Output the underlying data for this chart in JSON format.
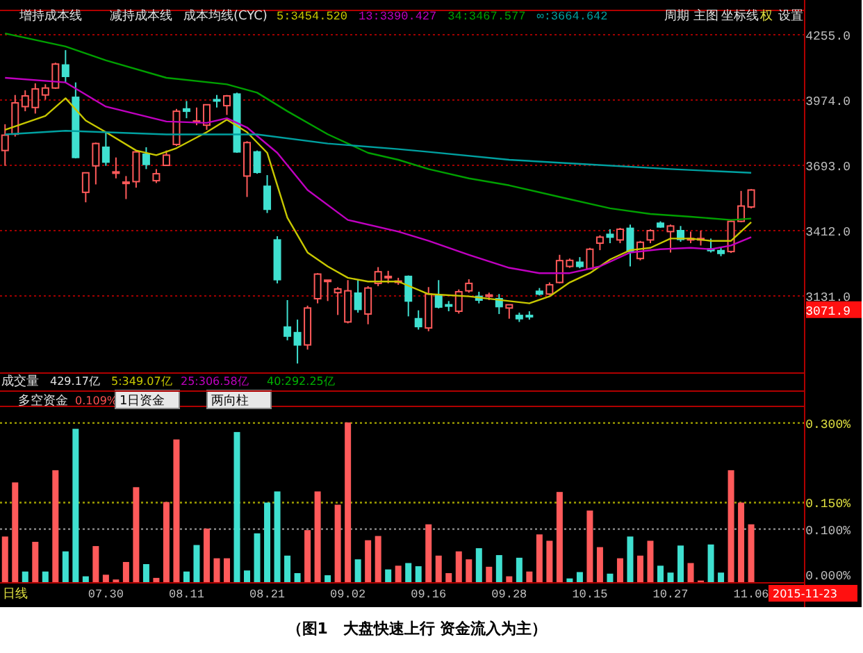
{
  "chart_data": [
    {
      "type": "candlestick",
      "grid": "y",
      "legend": "top",
      "categories": [
        null,
        null,
        null,
        null,
        null,
        null,
        null,
        null,
        null,
        null,
        null,
        null,
        null,
        null,
        null,
        null,
        null,
        null,
        null,
        null,
        null,
        null,
        null,
        null,
        null,
        null,
        null,
        null,
        null,
        null,
        null,
        null,
        null,
        null,
        null,
        null,
        null,
        null,
        null,
        null,
        null,
        null,
        null,
        null,
        null,
        null,
        null,
        null,
        null,
        null,
        null,
        null,
        null,
        null,
        null,
        null,
        null,
        null,
        null,
        null,
        null,
        null,
        null,
        null,
        null,
        null,
        null,
        null,
        null,
        null,
        null,
        null,
        null,
        null,
        null
      ],
      "ohlc": [
        [
          3757,
          3870,
          3691,
          3823
        ],
        [
          3827,
          3996,
          3817,
          3962
        ],
        [
          3946,
          4016,
          3926,
          3992
        ],
        [
          3942,
          4046,
          3916,
          4022
        ],
        [
          3996,
          4042,
          3976,
          4026
        ],
        [
          4026,
          4135,
          4022,
          4129
        ],
        [
          4125,
          4189,
          4050,
          4076
        ],
        [
          3986,
          4050,
          3723,
          3727
        ],
        [
          3577,
          3661,
          3534,
          3661
        ],
        [
          3691,
          3791,
          3611,
          3787
        ],
        [
          3771,
          3837,
          3691,
          3707
        ],
        [
          3661,
          3727,
          3637,
          3665
        ],
        [
          3617,
          3647,
          3548,
          3621
        ],
        [
          3623,
          3757,
          3597,
          3751
        ],
        [
          3741,
          3771,
          3677,
          3697
        ],
        [
          3627,
          3677,
          3617,
          3657
        ],
        [
          3693,
          3757,
          3691,
          3737
        ],
        [
          3783,
          3936,
          3777,
          3926
        ],
        [
          3936,
          3970,
          3896,
          3926
        ],
        [
          3880,
          3942,
          3866,
          3884
        ],
        [
          3866,
          3954,
          3846,
          3954
        ],
        [
          3976,
          3996,
          3942,
          3970
        ],
        [
          3950,
          3996,
          3910,
          3992
        ],
        [
          4000,
          4006,
          3747,
          3751
        ],
        [
          3647,
          3797,
          3557,
          3791
        ],
        [
          3751,
          3757,
          3657,
          3663
        ],
        [
          3603,
          3651,
          3488,
          3504
        ],
        [
          3372,
          3388,
          3185,
          3201
        ],
        [
          2997,
          3113,
          2940,
          2958
        ],
        [
          2973,
          3029,
          2840,
          2920
        ],
        [
          2920,
          3089,
          2900,
          3079
        ],
        [
          3119,
          3229,
          3099,
          3225
        ],
        [
          3195,
          3199,
          3109,
          3199
        ],
        [
          3145,
          3169,
          3049,
          3161
        ],
        [
          3019,
          3199,
          3013,
          3153
        ],
        [
          3143,
          3199,
          3059,
          3073
        ],
        [
          3053,
          3173,
          3009,
          3165
        ],
        [
          3185,
          3255,
          3173,
          3235
        ],
        [
          3211,
          3239,
          3185,
          3215
        ],
        [
          3191,
          3209,
          3179,
          3195
        ],
        [
          3215,
          3219,
          3043,
          3109
        ],
        [
          3033,
          3069,
          2986,
          2999
        ],
        [
          2993,
          3169,
          2979,
          3139
        ],
        [
          3133,
          3199,
          3077,
          3083
        ],
        [
          3093,
          3109,
          3065,
          3089
        ],
        [
          3065,
          3159,
          3055,
          3149
        ],
        [
          3153,
          3203,
          3145,
          3185
        ],
        [
          3129,
          3149,
          3099,
          3113
        ],
        [
          3131,
          3145,
          3113,
          3135
        ],
        [
          3119,
          3139,
          3053,
          3085
        ],
        [
          3079,
          3093,
          3033,
          3093
        ],
        [
          3047,
          3059,
          3019,
          3033
        ],
        [
          3047,
          3065,
          3029,
          3043
        ],
        [
          3151,
          3165,
          3133,
          3139
        ],
        [
          3139,
          3189,
          3135,
          3179
        ],
        [
          3189,
          3308,
          3185,
          3283
        ],
        [
          3258,
          3292,
          3252,
          3284
        ],
        [
          3276,
          3298,
          3250,
          3258
        ],
        [
          3248,
          3338,
          3244,
          3332
        ],
        [
          3358,
          3392,
          3328,
          3384
        ],
        [
          3396,
          3418,
          3358,
          3384
        ],
        [
          3372,
          3424,
          3358,
          3418
        ],
        [
          3422,
          3438,
          3258,
          3322
        ],
        [
          3292,
          3368,
          3284,
          3362
        ],
        [
          3372,
          3418,
          3358,
          3412
        ],
        [
          3444,
          3452,
          3424,
          3428
        ],
        [
          3408,
          3438,
          3318,
          3432
        ],
        [
          3412,
          3432,
          3364,
          3374
        ],
        [
          3376,
          3408,
          3358,
          3378
        ],
        [
          3374,
          3412,
          3348,
          3378
        ],
        [
          3334,
          3378,
          3318,
          3326
        ],
        [
          3326,
          3338,
          3302,
          3314
        ],
        [
          3322,
          3458,
          3316,
          3452
        ],
        [
          3452,
          3583,
          3448,
          3518
        ],
        [
          3514,
          3591,
          3508,
          3587
        ]
      ],
      "colors": [
        "#ff5a5a",
        "#ff5a5a",
        "#ff5a5a",
        "#ff5a5a",
        "#ff5a5a",
        "#ff5a5a",
        "#3fe0d0",
        "#3fe0d0",
        "#ff5a5a",
        "#ff5a5a",
        "#3fe0d0",
        "#ff5a5a",
        "#ff5a5a",
        "#ff5a5a",
        "#3fe0d0",
        "#ff5a5a",
        "#ff5a5a",
        "#ff5a5a",
        "#3fe0d0",
        "#ff5a5a",
        "#ff5a5a",
        "#3fe0d0",
        "#ff5a5a",
        "#3fe0d0",
        "#ff5a5a",
        "#3fe0d0",
        "#3fe0d0",
        "#3fe0d0",
        "#3fe0d0",
        "#3fe0d0",
        "#ff5a5a",
        "#ff5a5a",
        "#ff5a5a",
        "#ff5a5a",
        "#ff5a5a",
        "#3fe0d0",
        "#ff5a5a",
        "#ff5a5a",
        "#ff5a5a",
        "#ff5a5a",
        "#3fe0d0",
        "#3fe0d0",
        "#ff5a5a",
        "#3fe0d0",
        "#3fe0d0",
        "#ff5a5a",
        "#ff5a5a",
        "#3fe0d0",
        "#ff5a5a",
        "#3fe0d0",
        "#ff5a5a",
        "#3fe0d0",
        "#3fe0d0",
        "#3fe0d0",
        "#ff5a5a",
        "#ff5a5a",
        "#ff5a5a",
        "#3fe0d0",
        "#ff5a5a",
        "#ff5a5a",
        "#3fe0d0",
        "#ff5a5a",
        "#3fe0d0",
        "#ff5a5a",
        "#ff5a5a",
        "#3fe0d0",
        "#ff5a5a",
        "#3fe0d0",
        "#ff5a5a",
        "#ff5a5a",
        "#3fe0d0",
        "#3fe0d0",
        "#ff5a5a",
        "#ff5a5a",
        "#ff5a5a"
      ],
      "series": [
        {
          "type": "line",
          "name": "5:3454.520",
          "color": "#c8c800",
          "values": [
            3846,
            null,
            null,
            null,
            3906,
            null,
            3982,
            null,
            3886,
            null,
            3836,
            null,
            null,
            3757,
            null,
            3737,
            null,
            3767,
            null,
            null,
            3836,
            null,
            3890,
            null,
            3836,
            null,
            3747,
            null,
            3468,
            null,
            3318,
            null,
            3258,
            null,
            3209,
            null,
            3193,
            null,
            null,
            3193,
            null,
            null,
            3139,
            null,
            null,
            null,
            3129,
            null,
            null,
            null,
            3109,
            null,
            3099,
            null,
            3129,
            null,
            3189,
            null,
            3229,
            null,
            3288,
            null,
            3328,
            null,
            3338,
            null,
            3378,
            null,
            3378,
            null,
            3368,
            null,
            3368,
            null,
            3448
          ]
        },
        {
          "type": "line",
          "name": "13:3390.427",
          "color": "#c000c0",
          "values": [
            4070,
            null,
            null,
            null,
            null,
            null,
            4050,
            null,
            null,
            null,
            3946,
            null,
            null,
            null,
            null,
            null,
            3882,
            null,
            null,
            null,
            3876,
            null,
            3896,
            null,
            3856,
            null,
            null,
            3747,
            null,
            null,
            3587,
            null,
            null,
            null,
            3458,
            null,
            null,
            null,
            null,
            3408,
            null,
            null,
            3368,
            null,
            null,
            null,
            3308,
            null,
            null,
            null,
            3252,
            null,
            null,
            3229,
            null,
            null,
            3229,
            null,
            null,
            3258,
            null,
            null,
            3318,
            null,
            null,
            3332,
            null,
            null,
            3338,
            null,
            3332,
            null,
            3348,
            null,
            3384
          ]
        },
        {
          "type": "line",
          "name": "34:3467.577",
          "color": "#00a000",
          "values": [
            4261,
            null,
            null,
            null,
            null,
            null,
            4205,
            null,
            null,
            null,
            4145,
            null,
            null,
            null,
            null,
            null,
            4070,
            null,
            null,
            null,
            null,
            null,
            4042,
            null,
            null,
            4006,
            null,
            null,
            3926,
            null,
            null,
            null,
            3827,
            null,
            null,
            null,
            3747,
            null,
            null,
            3717,
            null,
            null,
            3677,
            null,
            null,
            null,
            3637,
            null,
            null,
            null,
            3607,
            null,
            null,
            null,
            null,
            3557,
            null,
            null,
            null,
            null,
            3508,
            null,
            null,
            null,
            3484,
            null,
            null,
            null,
            3472,
            null,
            null,
            null,
            3458,
            null,
            3464
          ]
        },
        {
          "type": "line",
          "name": "∞:3664.642",
          "color": "#00a0a0",
          "values": [
            3826,
            null,
            null,
            null,
            null,
            null,
            3842,
            null,
            null,
            null,
            null,
            null,
            null,
            null,
            null,
            null,
            3826,
            null,
            null,
            null,
            null,
            null,
            null,
            null,
            null,
            3826,
            null,
            null,
            null,
            null,
            null,
            null,
            3787,
            null,
            null,
            null,
            null,
            null,
            null,
            3763,
            null,
            null,
            3751,
            null,
            null,
            null,
            null,
            null,
            null,
            null,
            3717,
            null,
            null,
            null,
            null,
            null,
            null,
            null,
            3697,
            null,
            null,
            null,
            null,
            null,
            null,
            null,
            3677,
            null,
            null,
            null,
            null,
            null,
            null,
            null,
            3661
          ]
        }
      ],
      "ylim": [
        2802,
        4357
      ],
      "yticks": [
        {
          "value": 3071.9,
          "label": "3071.9"
        },
        {
          "value": 3131,
          "label": "3131.0"
        },
        {
          "value": 3412,
          "label": "3412.0"
        },
        {
          "value": 3693,
          "label": "3693.0"
        },
        {
          "value": 3974,
          "label": "3974.0"
        },
        {
          "value": 4255,
          "label": "4255.0"
        }
      ],
      "annotations": [
        "增持成本线",
        "减持成本线",
        "成本均线(CYC)",
        "周期",
        "主图",
        "坐标线",
        "权",
        "设置"
      ]
    },
    {
      "type": "bar",
      "categories": [
        null,
        null,
        null,
        null,
        null,
        null,
        null,
        null,
        null,
        null,
        "07.30",
        null,
        null,
        null,
        null,
        null,
        null,
        null,
        "08.11",
        null,
        null,
        null,
        null,
        null,
        null,
        null,
        "08.21",
        null,
        null,
        null,
        null,
        null,
        null,
        null,
        "09.02",
        null,
        null,
        null,
        null,
        null,
        null,
        null,
        "09.16",
        null,
        null,
        null,
        null,
        null,
        null,
        null,
        "09.28",
        null,
        null,
        null,
        null,
        null,
        null,
        null,
        "10.15",
        null,
        null,
        null,
        null,
        null,
        null,
        null,
        "10.27",
        null,
        null,
        null,
        null,
        null,
        null,
        null,
        "11.06"
      ],
      "values": [
        0.086,
        0.188,
        0.02,
        0.076,
        0.02,
        0.211,
        0.058,
        0.289,
        0.011,
        0.068,
        0.014,
        0.005,
        0.038,
        0.179,
        0.034,
        0.008,
        0.151,
        0.269,
        0.02,
        0.07,
        0.101,
        0.045,
        0.045,
        0.283,
        0.022,
        0.092,
        0.15,
        0.171,
        0.05,
        0.017,
        0.098,
        0.171,
        0.013,
        0.146,
        0.301,
        0.043,
        0.079,
        0.087,
        0.024,
        0.031,
        0.036,
        0.03,
        0.109,
        0.05,
        0.017,
        0.058,
        0.043,
        0.064,
        0.029,
        0.051,
        0.011,
        0.046,
        0.02,
        0.09,
        0.078,
        0.17,
        0.007,
        0.019,
        0.135,
        0.066,
        0.016,
        0.045,
        0.086,
        0.05,
        0.078,
        0.031,
        0.018,
        0.069,
        0.036,
        0.003,
        0.071,
        0.018,
        0.211,
        0.15,
        0.109
      ],
      "colors": [
        "#ff5a5a",
        "#ff5a5a",
        "#3fe0d0",
        "#ff5a5a",
        "#3fe0d0",
        "#ff5a5a",
        "#3fe0d0",
        "#3fe0d0",
        "#3fe0d0",
        "#ff5a5a",
        "#ff5a5a",
        "#ff5a5a",
        "#ff5a5a",
        "#ff5a5a",
        "#3fe0d0",
        "#ff5a5a",
        "#ff5a5a",
        "#ff5a5a",
        "#3fe0d0",
        "#3fe0d0",
        "#ff5a5a",
        "#ff5a5a",
        "#ff5a5a",
        "#3fe0d0",
        "#3fe0d0",
        "#3fe0d0",
        "#3fe0d0",
        "#3fe0d0",
        "#3fe0d0",
        "#3fe0d0",
        "#ff5a5a",
        "#ff5a5a",
        "#3fe0d0",
        "#ff5a5a",
        "#ff5a5a",
        "#3fe0d0",
        "#ff5a5a",
        "#ff5a5a",
        "#3fe0d0",
        "#ff5a5a",
        "#3fe0d0",
        "#3fe0d0",
        "#ff5a5a",
        "#ff5a5a",
        "#ff5a5a",
        "#ff5a5a",
        "#ff5a5a",
        "#3fe0d0",
        "#ff5a5a",
        "#3fe0d0",
        "#ff5a5a",
        "#3fe0d0",
        "#ff5a5a",
        "#ff5a5a",
        "#ff5a5a",
        "#ff5a5a",
        "#3fe0d0",
        "#3fe0d0",
        "#ff5a5a",
        "#ff5a5a",
        "#3fe0d0",
        "#ff5a5a",
        "#3fe0d0",
        "#ff5a5a",
        "#ff5a5a",
        "#3fe0d0",
        "#3fe0d0",
        "#3fe0d0",
        "#ff5a5a",
        "#ff5a5a",
        "#3fe0d0",
        "#3fe0d0",
        "#ff5a5a",
        "#ff5a5a",
        "#ff5a5a"
      ],
      "ylim": [
        0,
        0.33
      ],
      "yticks": [
        {
          "value": 0,
          "label": "0.000%"
        },
        {
          "value": 0.1,
          "label": "0.100%"
        },
        {
          "value": 0.15,
          "label": "0.150%"
        },
        {
          "value": 0.3,
          "label": "0.300%"
        }
      ],
      "ref_lines": [
        {
          "axis": "y",
          "value": 0.3,
          "color": "#a0a000",
          "line_style": "dotted"
        },
        {
          "axis": "y",
          "value": 0.15,
          "color": "#a0a000",
          "line_style": "dotted"
        },
        {
          "axis": "y",
          "value": 0.1,
          "color": "#909090",
          "line_style": "dotted"
        }
      ],
      "annotations": [
        "成交量",
        "429.17亿",
        "5:349.07亿",
        "25:306.58亿",
        "40:292.25亿",
        "多空资金",
        "0.109%",
        "1日资金",
        "两向柱",
        "日线",
        "2015-11-23",
        "（图1　大盘快速上行 资金流入为主）"
      ]
    }
  ]
}
